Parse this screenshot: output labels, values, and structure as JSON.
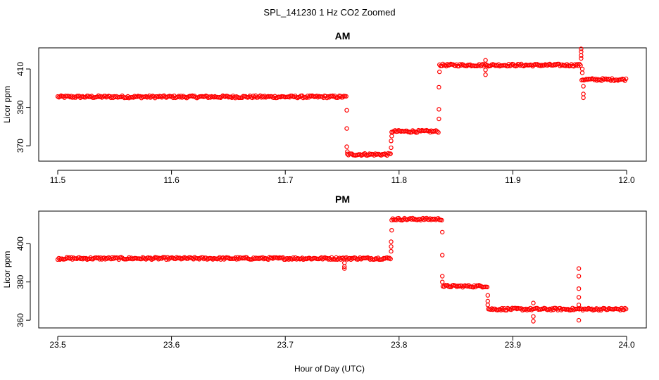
{
  "figure": {
    "title": "SPL_141230  1 Hz CO2 Zoomed",
    "xlabel": "Hour of Day (UTC)",
    "point_color": "#ff0000"
  },
  "chart_data": [
    {
      "type": "scatter",
      "title": "AM",
      "xlabel": "",
      "ylabel": "Licor ppm",
      "xlim": [
        11.5,
        12.0
      ],
      "ylim": [
        362,
        421
      ],
      "x_ticks": [
        11.5,
        11.6,
        11.7,
        11.8,
        11.9,
        12.0
      ],
      "x_tick_labels": [
        "11.5",
        "11.6",
        "11.7",
        "11.8",
        "11.9",
        "12.0"
      ],
      "y_ticks": [
        370,
        390,
        410
      ],
      "y_tick_labels": [
        "370",
        "390",
        "410"
      ],
      "grid": false,
      "series": [
        {
          "segments": [
            {
              "x0": 11.5,
              "x1": 11.7535,
              "y": 395.5
            },
            {
              "x0": 11.7545,
              "x1": 11.7925,
              "y": 365.5
            },
            {
              "x0": 11.7935,
              "x1": 11.8345,
              "y": 377.5
            },
            {
              "x0": 11.8355,
              "x1": 11.9595,
              "y": 412.0
            },
            {
              "x0": 11.9605,
              "x1": 11.9995,
              "y": 404.5
            }
          ],
          "transitions": [
            [
              11.754,
              388.5
            ],
            [
              11.754,
              379.0
            ],
            [
              11.754,
              369.5
            ],
            [
              11.7545,
              367.0
            ],
            [
              11.793,
              369.0
            ],
            [
              11.793,
              372.5
            ],
            [
              11.7935,
              375.0
            ],
            [
              11.835,
              384.0
            ],
            [
              11.835,
              389.0
            ],
            [
              11.835,
              400.5
            ],
            [
              11.8355,
              408.5
            ],
            [
              11.876,
              407.0
            ],
            [
              11.876,
              409.5
            ],
            [
              11.876,
              414.5
            ],
            [
              11.96,
              420.5
            ],
            [
              11.96,
              419.0
            ],
            [
              11.96,
              417.0
            ],
            [
              11.96,
              415.5
            ],
            [
              11.961,
              410.0
            ],
            [
              11.961,
              408.0
            ],
            [
              11.962,
              401.0
            ],
            [
              11.962,
              397.0
            ],
            [
              11.962,
              395.0
            ]
          ]
        }
      ]
    },
    {
      "type": "scatter",
      "title": "PM",
      "xlabel": "Hour of Day (UTC)",
      "ylabel": "Licor ppm",
      "xlim": [
        23.5,
        24.0
      ],
      "ylim": [
        356,
        417
      ],
      "x_ticks": [
        23.5,
        23.6,
        23.7,
        23.8,
        23.9,
        24.0
      ],
      "x_tick_labels": [
        "23.5",
        "23.6",
        "23.7",
        "23.8",
        "23.9",
        "24.0"
      ],
      "y_ticks": [
        360,
        380,
        400
      ],
      "y_tick_labels": [
        "360",
        "380",
        "400"
      ],
      "grid": false,
      "series": [
        {
          "segments": [
            {
              "x0": 23.5,
              "x1": 23.7925,
              "y": 392.3
            },
            {
              "x0": 23.7935,
              "x1": 23.8375,
              "y": 412.8
            },
            {
              "x0": 23.8385,
              "x1": 23.8775,
              "y": 377.8
            },
            {
              "x0": 23.8785,
              "x1": 23.9995,
              "y": 365.8
            }
          ],
          "transitions": [
            [
              23.752,
              390.0
            ],
            [
              23.752,
              388.0
            ],
            [
              23.752,
              387.0
            ],
            [
              23.793,
              396.0
            ],
            [
              23.793,
              398.5
            ],
            [
              23.793,
              401.0
            ],
            [
              23.7935,
              407.0
            ],
            [
              23.838,
              406.0
            ],
            [
              23.838,
              394.0
            ],
            [
              23.838,
              383.0
            ],
            [
              23.838,
              380.0
            ],
            [
              23.878,
              373.0
            ],
            [
              23.878,
              370.0
            ],
            [
              23.878,
              368.0
            ],
            [
              23.918,
              369.0
            ],
            [
              23.918,
              362.0
            ],
            [
              23.918,
              359.5
            ],
            [
              23.958,
              387.0
            ],
            [
              23.958,
              383.0
            ],
            [
              23.958,
              376.5
            ],
            [
              23.958,
              372.0
            ],
            [
              23.958,
              368.0
            ],
            [
              23.958,
              360.0
            ]
          ]
        }
      ]
    }
  ]
}
